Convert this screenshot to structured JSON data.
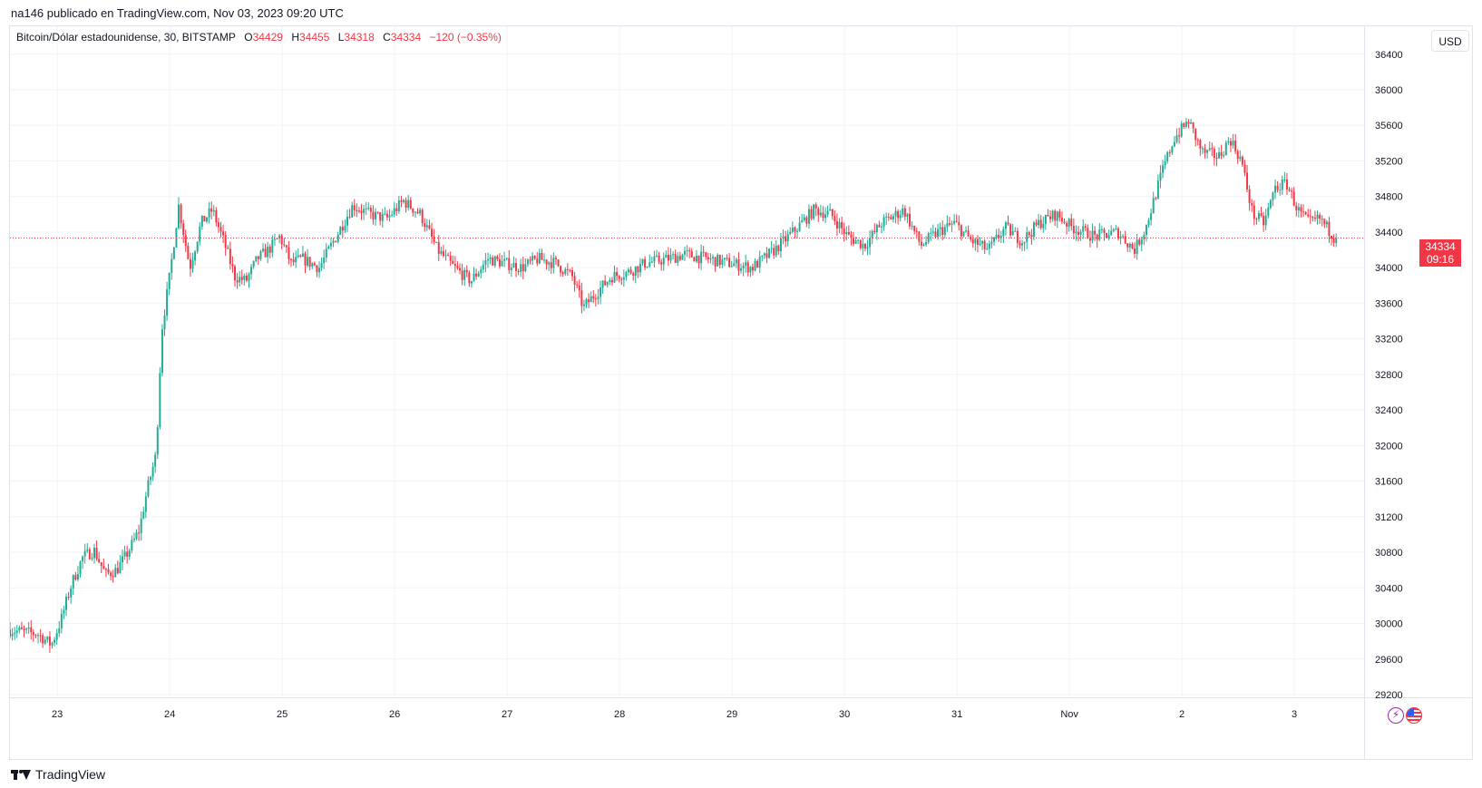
{
  "header": {
    "published": "na146 publicado en TradingView.com, Nov 03, 2023 09:20 UTC"
  },
  "legend": {
    "symbol": "Bitcoin/Dólar estadounidense, 30, BITSTAMP",
    "o_label": "O",
    "o_value": "34429",
    "h_label": "H",
    "h_value": "34455",
    "l_label": "L",
    "l_value": "34318",
    "c_label": "C",
    "c_value": "34334",
    "change": "−120 (−0.35%)"
  },
  "currency_button": "USD",
  "last_price": {
    "value": "34334",
    "countdown": "09:16"
  },
  "footer": {
    "brand": "TradingView"
  },
  "colors": {
    "up": "#22ab94",
    "down": "#f23645",
    "grid": "#f0f3fa",
    "axis_text": "#131722",
    "price_line": "#f23645"
  },
  "icons": [
    "flash-icon",
    "us-flag-icon",
    "tradingview-logo-icon"
  ],
  "chart_data": {
    "type": "candlestick",
    "interval_minutes": 30,
    "ylim": [
      29000,
      36500
    ],
    "y_ticks": [
      29200,
      29600,
      30000,
      30400,
      30800,
      31200,
      31600,
      32000,
      32400,
      32800,
      33200,
      33600,
      34000,
      34400,
      34800,
      35200,
      35600,
      36000,
      36400
    ],
    "x_ticks": [
      {
        "label": "23",
        "day": 1
      },
      {
        "label": "24",
        "day": 2
      },
      {
        "label": "25",
        "day": 3
      },
      {
        "label": "26",
        "day": 4
      },
      {
        "label": "27",
        "day": 5
      },
      {
        "label": "28",
        "day": 6
      },
      {
        "label": "29",
        "day": 7
      },
      {
        "label": "30",
        "day": 8
      },
      {
        "label": "31",
        "day": 9
      },
      {
        "label": "Nov",
        "day": 10
      },
      {
        "label": "2",
        "day": 11
      },
      {
        "label": "3",
        "day": 12
      }
    ],
    "xlim_days": [
      0.58,
      12.62
    ],
    "last_close": 34334,
    "price_path": [
      {
        "day": 0.58,
        "price": 29930
      },
      {
        "day": 0.85,
        "price": 29880
      },
      {
        "day": 0.97,
        "price": 29760
      },
      {
        "day": 1.05,
        "price": 30020
      },
      {
        "day": 1.15,
        "price": 30450
      },
      {
        "day": 1.25,
        "price": 30750
      },
      {
        "day": 1.35,
        "price": 30820
      },
      {
        "day": 1.45,
        "price": 30550
      },
      {
        "day": 1.55,
        "price": 30600
      },
      {
        "day": 1.65,
        "price": 30800
      },
      {
        "day": 1.75,
        "price": 31050
      },
      {
        "day": 1.82,
        "price": 31500
      },
      {
        "day": 1.9,
        "price": 31900
      },
      {
        "day": 1.95,
        "price": 33300
      },
      {
        "day": 2.02,
        "price": 33900
      },
      {
        "day": 2.1,
        "price": 34700
      },
      {
        "day": 2.2,
        "price": 34000
      },
      {
        "day": 2.3,
        "price": 34500
      },
      {
        "day": 2.4,
        "price": 34650
      },
      {
        "day": 2.5,
        "price": 34300
      },
      {
        "day": 2.6,
        "price": 33900
      },
      {
        "day": 2.7,
        "price": 33850
      },
      {
        "day": 2.8,
        "price": 34100
      },
      {
        "day": 2.9,
        "price": 34200
      },
      {
        "day": 3.0,
        "price": 34350
      },
      {
        "day": 3.1,
        "price": 34050
      },
      {
        "day": 3.2,
        "price": 34100
      },
      {
        "day": 3.35,
        "price": 34000
      },
      {
        "day": 3.5,
        "price": 34350
      },
      {
        "day": 3.65,
        "price": 34700
      },
      {
        "day": 3.8,
        "price": 34600
      },
      {
        "day": 3.95,
        "price": 34550
      },
      {
        "day": 4.1,
        "price": 34750
      },
      {
        "day": 4.25,
        "price": 34600
      },
      {
        "day": 4.4,
        "price": 34200
      },
      {
        "day": 4.55,
        "price": 34000
      },
      {
        "day": 4.7,
        "price": 33850
      },
      {
        "day": 4.85,
        "price": 34100
      },
      {
        "day": 5.0,
        "price": 34050
      },
      {
        "day": 5.15,
        "price": 34000
      },
      {
        "day": 5.3,
        "price": 34100
      },
      {
        "day": 5.45,
        "price": 34050
      },
      {
        "day": 5.6,
        "price": 33900
      },
      {
        "day": 5.7,
        "price": 33550
      },
      {
        "day": 5.8,
        "price": 33700
      },
      {
        "day": 5.95,
        "price": 33900
      },
      {
        "day": 6.1,
        "price": 33950
      },
      {
        "day": 6.25,
        "price": 34050
      },
      {
        "day": 6.45,
        "price": 34100
      },
      {
        "day": 6.6,
        "price": 34150
      },
      {
        "day": 6.8,
        "price": 34100
      },
      {
        "day": 7.0,
        "price": 34050
      },
      {
        "day": 7.2,
        "price": 34000
      },
      {
        "day": 7.4,
        "price": 34200
      },
      {
        "day": 7.6,
        "price": 34450
      },
      {
        "day": 7.75,
        "price": 34650
      },
      {
        "day": 7.9,
        "price": 34600
      },
      {
        "day": 8.05,
        "price": 34350
      },
      {
        "day": 8.2,
        "price": 34250
      },
      {
        "day": 8.35,
        "price": 34500
      },
      {
        "day": 8.55,
        "price": 34650
      },
      {
        "day": 8.7,
        "price": 34250
      },
      {
        "day": 8.85,
        "price": 34400
      },
      {
        "day": 9.0,
        "price": 34500
      },
      {
        "day": 9.15,
        "price": 34300
      },
      {
        "day": 9.3,
        "price": 34200
      },
      {
        "day": 9.45,
        "price": 34450
      },
      {
        "day": 9.6,
        "price": 34300
      },
      {
        "day": 9.75,
        "price": 34500
      },
      {
        "day": 9.9,
        "price": 34600
      },
      {
        "day": 10.05,
        "price": 34450
      },
      {
        "day": 10.25,
        "price": 34350
      },
      {
        "day": 10.45,
        "price": 34400
      },
      {
        "day": 10.6,
        "price": 34200
      },
      {
        "day": 10.7,
        "price": 34450
      },
      {
        "day": 10.85,
        "price": 35100
      },
      {
        "day": 10.95,
        "price": 35450
      },
      {
        "day": 11.08,
        "price": 35650
      },
      {
        "day": 11.2,
        "price": 35300
      },
      {
        "day": 11.35,
        "price": 35250
      },
      {
        "day": 11.45,
        "price": 35450
      },
      {
        "day": 11.55,
        "price": 35200
      },
      {
        "day": 11.65,
        "price": 34600
      },
      {
        "day": 11.75,
        "price": 34500
      },
      {
        "day": 11.85,
        "price": 34900
      },
      {
        "day": 11.95,
        "price": 34950
      },
      {
        "day": 12.05,
        "price": 34650
      },
      {
        "day": 12.15,
        "price": 34500
      },
      {
        "day": 12.25,
        "price": 34550
      },
      {
        "day": 12.38,
        "price": 34334
      }
    ]
  }
}
